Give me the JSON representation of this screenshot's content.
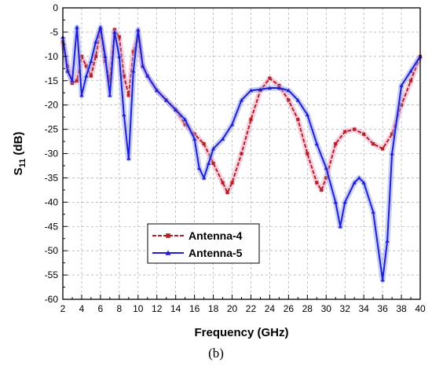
{
  "caption": "(b)",
  "chart_data": {
    "type": "line",
    "xlabel": "Frequency (GHz)",
    "ylabel_main": "S",
    "ylabel_sub": "11",
    "ylabel_suffix": " (dB)",
    "xlim": [
      2,
      40
    ],
    "ylim": [
      -60,
      0
    ],
    "xticks": [
      2,
      4,
      6,
      8,
      10,
      12,
      14,
      16,
      18,
      20,
      22,
      24,
      26,
      28,
      30,
      32,
      34,
      36,
      38,
      40
    ],
    "yticks": [
      0,
      -5,
      -10,
      -15,
      -20,
      -25,
      -30,
      -35,
      -40,
      -45,
      -50,
      -55,
      -60
    ],
    "grid": true,
    "legend_position": "bottom-left",
    "series": [
      {
        "name": "Antenna-4",
        "color": "#b22222",
        "glow": "#f2a7c6",
        "marker": "square",
        "x": [
          2,
          2.5,
          3,
          3.5,
          4,
          4.5,
          5,
          5.5,
          6,
          6.5,
          7,
          7.5,
          8,
          8.5,
          9,
          9.5,
          10,
          10.5,
          11,
          12,
          13,
          14,
          15,
          16,
          17,
          18,
          19,
          19.5,
          20,
          21,
          22,
          23,
          24,
          25,
          26,
          27,
          28,
          29,
          29.5,
          30,
          31,
          32,
          33,
          34,
          35,
          36,
          37,
          38,
          39,
          40
        ],
        "y": [
          -7,
          -12,
          -15.5,
          -15,
          -10,
          -12,
          -14,
          -10,
          -4.5,
          -11,
          -15,
          -4.5,
          -6,
          -14,
          -18,
          -9,
          -6,
          -12,
          -14,
          -17,
          -19,
          -21,
          -24,
          -26,
          -28,
          -32,
          -36,
          -38,
          -36,
          -30,
          -23,
          -17,
          -14.5,
          -16,
          -19,
          -23,
          -30,
          -36,
          -37.5,
          -35,
          -28,
          -25.5,
          -25,
          -26,
          -28,
          -29,
          -26,
          -20,
          -15,
          -10
        ]
      },
      {
        "name": "Antenna-5",
        "color": "#1f1fd0",
        "glow": "#9aa6f5",
        "marker": "triangle",
        "x": [
          2,
          2.5,
          3,
          3.5,
          4,
          4.5,
          5,
          5.5,
          6,
          6.5,
          7,
          7.5,
          8,
          8.5,
          9,
          9.5,
          10,
          10.5,
          11,
          12,
          13,
          14,
          15,
          16,
          16.5,
          17,
          17.5,
          18,
          19,
          20,
          21,
          22,
          23,
          24,
          25,
          26,
          27,
          28,
          29,
          30,
          31,
          31.5,
          32,
          33,
          33.5,
          34,
          35,
          36,
          36.5,
          37,
          38,
          39,
          40
        ],
        "y": [
          -6,
          -13,
          -15,
          -4,
          -18,
          -14,
          -11,
          -7,
          -4,
          -10,
          -18,
          -5,
          -10,
          -22,
          -31,
          -13,
          -4.5,
          -12,
          -14,
          -17,
          -19,
          -21,
          -23,
          -27,
          -33,
          -35,
          -32,
          -29,
          -27,
          -24,
          -19,
          -17,
          -16.8,
          -16.5,
          -16.5,
          -17,
          -19,
          -22,
          -28,
          -33,
          -40,
          -45,
          -40,
          -36,
          -35,
          -36,
          -42,
          -56,
          -48,
          -30,
          -16,
          -13,
          -10
        ]
      }
    ]
  }
}
